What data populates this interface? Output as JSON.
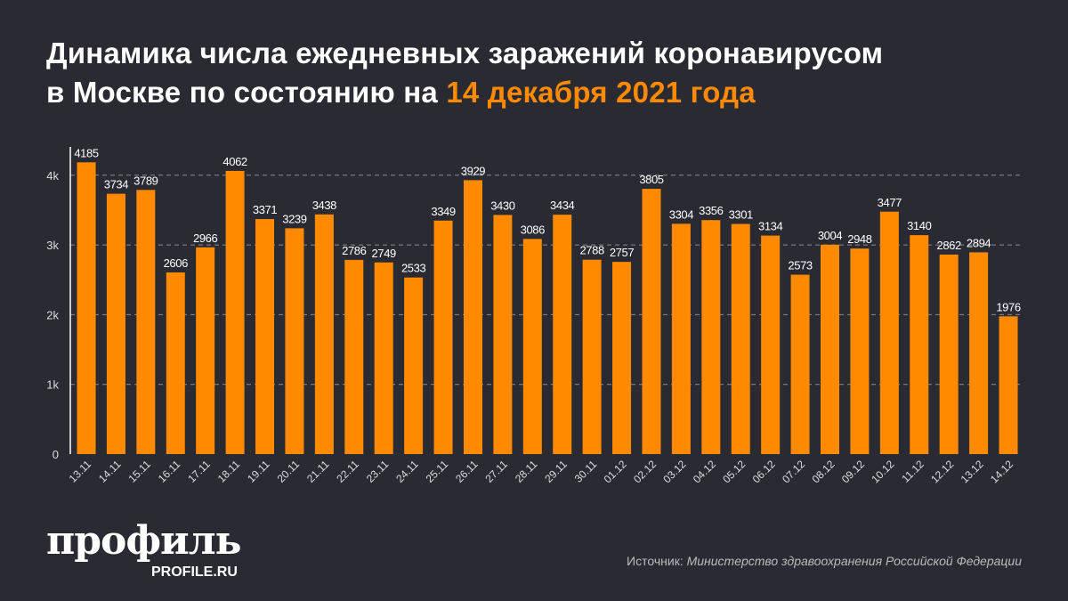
{
  "title": {
    "line1": "Динамика числа ежедневных заражений коронавирусом",
    "line2_prefix": "в Москве по состоянию на ",
    "line2_highlight": "14 декабря 2021 года"
  },
  "colors": {
    "background": "#2a2a33",
    "bar": "#ff8a00",
    "highlight": "#ff8a00",
    "grid": "#8a8a90"
  },
  "chart_data": {
    "type": "bar",
    "categories": [
      "13.11",
      "14.11",
      "15.11",
      "16.11",
      "17.11",
      "18.11",
      "19.11",
      "20.11",
      "21.11",
      "22.11",
      "23.11",
      "24.11",
      "25.11",
      "26.11",
      "27.11",
      "28.11",
      "29.11",
      "30.11",
      "01.12",
      "02.12",
      "03.12",
      "04.12",
      "05.12",
      "06.12",
      "07.12",
      "08.12",
      "09.12",
      "10.12",
      "11.12",
      "12.12",
      "13.12",
      "14.12"
    ],
    "values": [
      4185,
      3734,
      3789,
      2606,
      2966,
      4062,
      3371,
      3239,
      3438,
      2786,
      2749,
      2533,
      3349,
      3929,
      3430,
      3086,
      3434,
      2788,
      2757,
      3805,
      3304,
      3356,
      3301,
      3134,
      2573,
      3004,
      2948,
      3477,
      3140,
      2862,
      2894,
      1976
    ],
    "yticks": [
      0,
      1000,
      2000,
      3000,
      4000
    ],
    "ytick_labels": [
      "0",
      "1k",
      "2k",
      "3k",
      "4k"
    ],
    "ylim": [
      0,
      4400
    ],
    "grid": true,
    "data_labels": true
  },
  "logo": {
    "main": "профиль",
    "sub": "PROFILE.RU"
  },
  "source": {
    "label": "Источник: ",
    "text": "Министерство здравоохранения Российской Федерации"
  }
}
